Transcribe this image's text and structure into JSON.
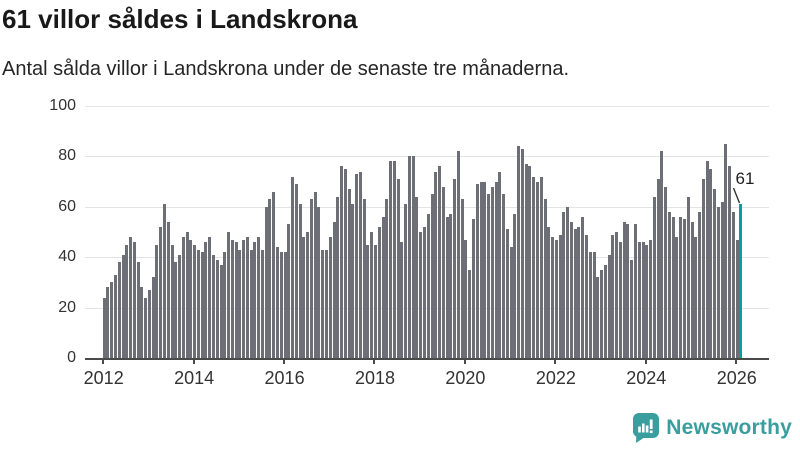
{
  "header": {
    "title": "61 villor såldes i Landskrona",
    "subtitle": "Antal sålda villor i Landskrona under de senaste tre månaderna."
  },
  "chart_data": {
    "type": "bar",
    "title": "61 villor såldes i Landskrona",
    "subtitle": "Antal sålda villor i Landskrona under de senaste tre månaderna.",
    "unit": "sålda villor (rullande tre månader)",
    "frequency": "monthly",
    "start_year": 2012,
    "xlabel": "",
    "ylabel": "",
    "ylim": [
      0,
      100
    ],
    "y_ticks": [
      0,
      20,
      40,
      60,
      80,
      100
    ],
    "x_tick_labels": [
      "2012",
      "2014",
      "2016",
      "2018",
      "2020",
      "2022",
      "2024",
      "2026"
    ],
    "grid": "horizontal",
    "bar_color": "#6e6e77",
    "highlight_color": "#00a0a5",
    "values": [
      24,
      28,
      30,
      33,
      38,
      41,
      45,
      48,
      46,
      38,
      28,
      24,
      27,
      32,
      45,
      52,
      61,
      54,
      45,
      38,
      41,
      48,
      50,
      47,
      45,
      43,
      42,
      46,
      48,
      41,
      39,
      37,
      42,
      50,
      47,
      46,
      43,
      47,
      48,
      43,
      46,
      48,
      43,
      60,
      63,
      66,
      44,
      42,
      42,
      53,
      72,
      69,
      61,
      48,
      50,
      63,
      66,
      60,
      43,
      43,
      48,
      54,
      64,
      76,
      75,
      67,
      61,
      73,
      74,
      63,
      45,
      50,
      45,
      52,
      56,
      63,
      78,
      78,
      71,
      46,
      61,
      80,
      80,
      64,
      50,
      52,
      57,
      65,
      74,
      76,
      68,
      56,
      57,
      71,
      82,
      63,
      47,
      35,
      55,
      69,
      70,
      70,
      65,
      68,
      70,
      74,
      65,
      51,
      44,
      57,
      84,
      83,
      77,
      76,
      72,
      70,
      72,
      63,
      52,
      48,
      47,
      49,
      58,
      60,
      54,
      51,
      52,
      56,
      49,
      42,
      42,
      32,
      35,
      37,
      41,
      49,
      50,
      46,
      54,
      53,
      39,
      53,
      46,
      46,
      45,
      47,
      64,
      71,
      82,
      68,
      58,
      56,
      48,
      56,
      55,
      64,
      54,
      48,
      58,
      71,
      78,
      75,
      67,
      60,
      62,
      85,
      76,
      58,
      47,
      61
    ],
    "highlight": {
      "index": 169,
      "value": 61,
      "label": "61"
    },
    "annotation": "61",
    "legend": "none"
  },
  "branding": {
    "name": "Newsworthy",
    "color": "#3a9e9e",
    "icon": "newsworthy-chart-bubble-icon"
  }
}
